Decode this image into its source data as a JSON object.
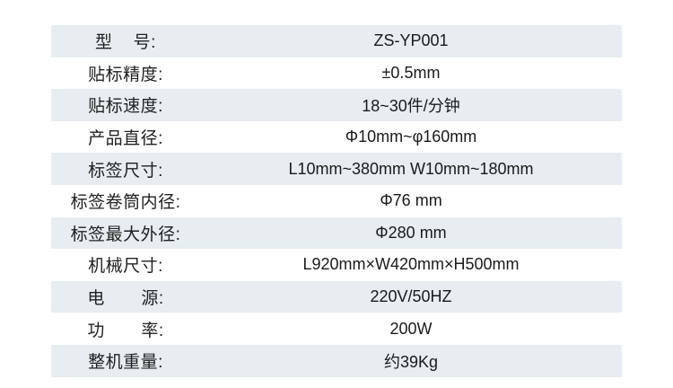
{
  "table": {
    "rows": [
      {
        "label": "型    号:",
        "value": "ZS-YP001"
      },
      {
        "label": "贴标精度:",
        "value": "±0.5mm"
      },
      {
        "label": "贴标速度:",
        "value": "18~30件/分钟"
      },
      {
        "label": "产品直径:",
        "value": "Φ10mm~φ160mm"
      },
      {
        "label": "标签尺寸:",
        "value": "L10mm~380mm W10mm~180mm"
      },
      {
        "label": "标签卷筒内径:",
        "value": "Φ76 mm"
      },
      {
        "label": "标签最大外径:",
        "value": "Φ280 mm"
      },
      {
        "label": "机械尺寸:",
        "value": "L920mm×W420mm×H500mm"
      },
      {
        "label": "电       源:",
        "value": "220V/50HZ"
      },
      {
        "label": "功       率:",
        "value": "200W"
      },
      {
        "label": "整机重量:",
        "value": "约39Kg"
      }
    ]
  },
  "colors": {
    "row_shade": "#e7edf0",
    "text": "#212121",
    "background": "#ffffff"
  }
}
